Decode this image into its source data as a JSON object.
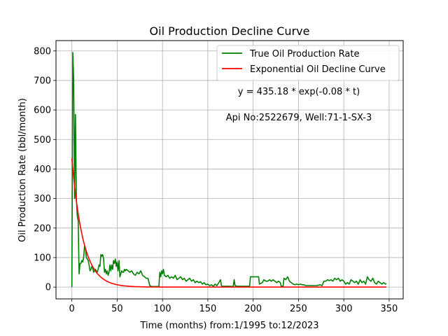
{
  "chart_data": {
    "type": "line",
    "title": "Oil Production Decline Curve",
    "xlabel": "Time (months) from:1/1995 to:12/2023",
    "ylabel": "Oil Production Rate (bbl/month)",
    "xlim": [
      -17.5,
      365.5
    ],
    "ylim": [
      -40,
      835
    ],
    "x_ticks": [
      0,
      50,
      100,
      150,
      200,
      250,
      300,
      350
    ],
    "y_ticks": [
      0,
      100,
      200,
      300,
      400,
      500,
      600,
      700,
      800
    ],
    "grid": true,
    "legend_position": "top-right",
    "annotations": [
      "y = 435.18 * exp(-0.08 * t)",
      "Api No:2522679, Well:71-1-SX-3"
    ],
    "fit": {
      "a": 435.18,
      "b": 0.08,
      "t_max": 347
    },
    "series": [
      {
        "name": "True Oil Production Rate",
        "color": "#008000",
        "points": [
          [
            0,
            0
          ],
          [
            1,
            795
          ],
          [
            2,
            700
          ],
          [
            3,
            300
          ],
          [
            4,
            585
          ],
          [
            5,
            300
          ],
          [
            6,
            240
          ],
          [
            7,
            225
          ],
          [
            8,
            45
          ],
          [
            9,
            80
          ],
          [
            10,
            80
          ],
          [
            11,
            90
          ],
          [
            12,
            85
          ],
          [
            13,
            100
          ],
          [
            14,
            140
          ],
          [
            15,
            130
          ],
          [
            16,
            100
          ],
          [
            17,
            95
          ],
          [
            18,
            90
          ],
          [
            19,
            75
          ],
          [
            20,
            55
          ],
          [
            21,
            60
          ],
          [
            22,
            70
          ],
          [
            23,
            65
          ],
          [
            24,
            50
          ],
          [
            25,
            55
          ],
          [
            26,
            60
          ],
          [
            27,
            55
          ],
          [
            28,
            50
          ],
          [
            29,
            60
          ],
          [
            30,
            75
          ],
          [
            31,
            70
          ],
          [
            32,
            110
          ],
          [
            33,
            105
          ],
          [
            34,
            110
          ],
          [
            35,
            95
          ],
          [
            36,
            50
          ],
          [
            37,
            60
          ],
          [
            38,
            45
          ],
          [
            39,
            55
          ],
          [
            40,
            40
          ],
          [
            41,
            50
          ],
          [
            42,
            75
          ],
          [
            43,
            55
          ],
          [
            44,
            75
          ],
          [
            45,
            60
          ],
          [
            46,
            90
          ],
          [
            47,
            80
          ],
          [
            48,
            95
          ],
          [
            49,
            70
          ],
          [
            50,
            85
          ],
          [
            51,
            55
          ],
          [
            52,
            90
          ],
          [
            53,
            35
          ],
          [
            54,
            45
          ],
          [
            55,
            55
          ],
          [
            56,
            50
          ],
          [
            57,
            50
          ],
          [
            58,
            60
          ],
          [
            59,
            55
          ],
          [
            60,
            60
          ],
          [
            62,
            55
          ],
          [
            64,
            50
          ],
          [
            66,
            55
          ],
          [
            68,
            45
          ],
          [
            70,
            40
          ],
          [
            72,
            50
          ],
          [
            74,
            45
          ],
          [
            76,
            55
          ],
          [
            78,
            40
          ],
          [
            80,
            35
          ],
          [
            82,
            30
          ],
          [
            84,
            30
          ],
          [
            86,
            5
          ],
          [
            88,
            2
          ],
          [
            90,
            2
          ],
          [
            92,
            2
          ],
          [
            94,
            2
          ],
          [
            96,
            2
          ],
          [
            97,
            50
          ],
          [
            98,
            35
          ],
          [
            99,
            55
          ],
          [
            100,
            45
          ],
          [
            101,
            60
          ],
          [
            102,
            40
          ],
          [
            104,
            35
          ],
          [
            106,
            40
          ],
          [
            108,
            30
          ],
          [
            110,
            35
          ],
          [
            112,
            30
          ],
          [
            114,
            40
          ],
          [
            116,
            25
          ],
          [
            118,
            30
          ],
          [
            120,
            35
          ],
          [
            122,
            25
          ],
          [
            124,
            30
          ],
          [
            126,
            20
          ],
          [
            128,
            25
          ],
          [
            130,
            30
          ],
          [
            132,
            20
          ],
          [
            134,
            25
          ],
          [
            136,
            15
          ],
          [
            138,
            20
          ],
          [
            140,
            15
          ],
          [
            142,
            18
          ],
          [
            144,
            10
          ],
          [
            146,
            15
          ],
          [
            148,
            8
          ],
          [
            150,
            10
          ],
          [
            152,
            5
          ],
          [
            154,
            8
          ],
          [
            156,
            3
          ],
          [
            158,
            10
          ],
          [
            160,
            5
          ],
          [
            162,
            15
          ],
          [
            164,
            25
          ],
          [
            165,
            5
          ],
          [
            166,
            3
          ],
          [
            170,
            3
          ],
          [
            174,
            3
          ],
          [
            178,
            2
          ],
          [
            179,
            25
          ],
          [
            180,
            5
          ],
          [
            182,
            3
          ],
          [
            186,
            3
          ],
          [
            190,
            3
          ],
          [
            194,
            3
          ],
          [
            196,
            3
          ],
          [
            197,
            35
          ],
          [
            200,
            35
          ],
          [
            204,
            35
          ],
          [
            206,
            35
          ],
          [
            207,
            10
          ],
          [
            210,
            15
          ],
          [
            212,
            25
          ],
          [
            214,
            20
          ],
          [
            216,
            20
          ],
          [
            218,
            25
          ],
          [
            220,
            20
          ],
          [
            222,
            25
          ],
          [
            224,
            20
          ],
          [
            226,
            15
          ],
          [
            228,
            20
          ],
          [
            230,
            15
          ],
          [
            231,
            3
          ],
          [
            233,
            3
          ],
          [
            234,
            30
          ],
          [
            236,
            25
          ],
          [
            238,
            35
          ],
          [
            240,
            20
          ],
          [
            242,
            15
          ],
          [
            244,
            10
          ],
          [
            246,
            8
          ],
          [
            248,
            10
          ],
          [
            250,
            8
          ],
          [
            252,
            10
          ],
          [
            254,
            8
          ],
          [
            256,
            8
          ],
          [
            258,
            5
          ],
          [
            262,
            5
          ],
          [
            266,
            5
          ],
          [
            270,
            5
          ],
          [
            274,
            8
          ],
          [
            276,
            5
          ],
          [
            278,
            20
          ],
          [
            280,
            20
          ],
          [
            282,
            25
          ],
          [
            284,
            22
          ],
          [
            286,
            25
          ],
          [
            288,
            20
          ],
          [
            290,
            30
          ],
          [
            292,
            25
          ],
          [
            294,
            30
          ],
          [
            296,
            20
          ],
          [
            298,
            25
          ],
          [
            300,
            20
          ],
          [
            302,
            10
          ],
          [
            304,
            15
          ],
          [
            306,
            10
          ],
          [
            308,
            25
          ],
          [
            310,
            20
          ],
          [
            312,
            15
          ],
          [
            314,
            20
          ],
          [
            316,
            10
          ],
          [
            318,
            25
          ],
          [
            320,
            15
          ],
          [
            322,
            20
          ],
          [
            324,
            10
          ],
          [
            326,
            35
          ],
          [
            328,
            25
          ],
          [
            330,
            20
          ],
          [
            332,
            30
          ],
          [
            334,
            15
          ],
          [
            336,
            10
          ],
          [
            338,
            20
          ],
          [
            340,
            15
          ],
          [
            342,
            10
          ],
          [
            344,
            15
          ],
          [
            346,
            10
          ],
          [
            347,
            12
          ]
        ]
      },
      {
        "name": "Exponential Oil Decline Curve",
        "color": "#ff0000"
      }
    ]
  }
}
